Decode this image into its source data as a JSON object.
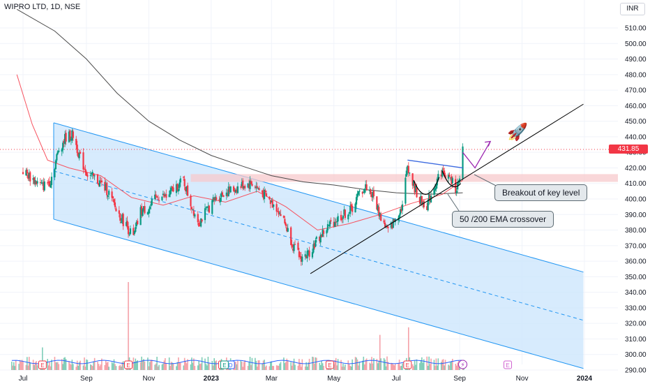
{
  "header": {
    "title": "WIPRO LTD, 1D, NSE",
    "currency": "INR"
  },
  "last_price": "431.85",
  "colors": {
    "up": "#089981",
    "down": "#f23645",
    "ema50": "#f7525f",
    "ema200": "#4a4a4a",
    "channel_fill": "#cde6fc",
    "channel_line": "#2196f3",
    "resistance_fill": "#f7c9cc",
    "cup_handle": "#3d6be0",
    "arrow": "#9c27b0",
    "trendline": "#000000"
  },
  "annotations": [
    {
      "id": "breakout",
      "text": "Breakout of key level"
    },
    {
      "id": "ema_cross",
      "text": "50 /200  EMA crossover"
    }
  ],
  "chart_data": {
    "type": "candlestick",
    "title": "WIPRO LTD, 1D, NSE",
    "y_unit": "INR",
    "ylim": [
      288,
      518
    ],
    "y_ticks": [
      "510.00",
      "500.00",
      "490.00",
      "480.00",
      "470.00",
      "460.00",
      "450.00",
      "440.00",
      "430.00",
      "420.00",
      "410.00",
      "400.00",
      "390.00",
      "380.00",
      "370.00",
      "360.00",
      "350.00",
      "340.00",
      "330.00",
      "320.00",
      "310.00",
      "300.00",
      "290.00"
    ],
    "x_ticks": [
      "Jul",
      "Sep",
      "Nov",
      "2023",
      "Mar",
      "May",
      "Jul",
      "Sep",
      "Nov",
      "2024"
    ],
    "grid": true,
    "close_price_path": [
      [
        "2022-07-01",
        418
      ],
      [
        "2022-07-10",
        413
      ],
      [
        "2022-07-20",
        408
      ],
      [
        "2022-07-28",
        412
      ],
      [
        "2022-08-05",
        432
      ],
      [
        "2022-08-12",
        440
      ],
      [
        "2022-08-19",
        441
      ],
      [
        "2022-08-26",
        426
      ],
      [
        "2022-09-02",
        416
      ],
      [
        "2022-09-12",
        412
      ],
      [
        "2022-09-22",
        405
      ],
      [
        "2022-09-30",
        393
      ],
      [
        "2022-10-10",
        383
      ],
      [
        "2022-10-17",
        375
      ],
      [
        "2022-10-24",
        392
      ],
      [
        "2022-11-02",
        395
      ],
      [
        "2022-11-10",
        402
      ],
      [
        "2022-11-18",
        401
      ],
      [
        "2022-11-28",
        408
      ],
      [
        "2022-12-05",
        412
      ],
      [
        "2022-12-12",
        397
      ],
      [
        "2022-12-20",
        385
      ],
      [
        "2022-12-28",
        393
      ],
      [
        "2023-01-05",
        400
      ],
      [
        "2023-01-13",
        404
      ],
      [
        "2023-01-23",
        406
      ],
      [
        "2023-02-01",
        409
      ],
      [
        "2023-02-10",
        410
      ],
      [
        "2023-02-20",
        404
      ],
      [
        "2023-02-28",
        398
      ],
      [
        "2023-03-07",
        394
      ],
      [
        "2023-03-15",
        383
      ],
      [
        "2023-03-22",
        370
      ],
      [
        "2023-03-29",
        362
      ],
      [
        "2023-04-05",
        364
      ],
      [
        "2023-04-12",
        371
      ],
      [
        "2023-04-20",
        378
      ],
      [
        "2023-04-28",
        384
      ],
      [
        "2023-05-08",
        389
      ],
      [
        "2023-05-18",
        393
      ],
      [
        "2023-05-26",
        404
      ],
      [
        "2023-06-02",
        408
      ],
      [
        "2023-06-09",
        401
      ],
      [
        "2023-06-16",
        388
      ],
      [
        "2023-06-23",
        379
      ],
      [
        "2023-06-30",
        387
      ],
      [
        "2023-07-07",
        396
      ],
      [
        "2023-07-12",
        422
      ],
      [
        "2023-07-17",
        410
      ],
      [
        "2023-07-24",
        399
      ],
      [
        "2023-07-31",
        396
      ],
      [
        "2023-08-07",
        408
      ],
      [
        "2023-08-14",
        418
      ],
      [
        "2023-08-21",
        414
      ],
      [
        "2023-08-28",
        407
      ],
      [
        "2023-09-01",
        410
      ],
      [
        "2023-09-04",
        431.85
      ]
    ],
    "ema50": [
      [
        "2022-06-25",
        480
      ],
      [
        "2022-07-10",
        448
      ],
      [
        "2022-07-25",
        425
      ],
      [
        "2022-08-15",
        420
      ],
      [
        "2022-09-15",
        415
      ],
      [
        "2022-10-15",
        401
      ],
      [
        "2022-11-15",
        396
      ],
      [
        "2022-12-15",
        402
      ],
      [
        "2023-01-15",
        398
      ],
      [
        "2023-02-15",
        405
      ],
      [
        "2023-03-15",
        395
      ],
      [
        "2023-04-15",
        380
      ],
      [
        "2023-05-15",
        384
      ],
      [
        "2023-06-15",
        390
      ],
      [
        "2023-07-15",
        397
      ],
      [
        "2023-08-15",
        403
      ],
      [
        "2023-09-04",
        412
      ]
    ],
    "ema200": [
      [
        "2022-06-25",
        522
      ],
      [
        "2022-08-01",
        508
      ],
      [
        "2022-09-01",
        490
      ],
      [
        "2022-10-01",
        468
      ],
      [
        "2022-11-01",
        450
      ],
      [
        "2022-12-01",
        438
      ],
      [
        "2023-01-01",
        428
      ],
      [
        "2023-02-01",
        421
      ],
      [
        "2023-03-01",
        415
      ],
      [
        "2023-04-01",
        411
      ],
      [
        "2023-05-01",
        409
      ],
      [
        "2023-06-01",
        406
      ],
      [
        "2023-07-01",
        404
      ],
      [
        "2023-08-01",
        403
      ],
      [
        "2023-09-04",
        404
      ]
    ],
    "channel": {
      "upper": [
        [
          "2022-07-31",
          449
        ],
        [
          "2023-12-31",
          353
        ]
      ],
      "lower": [
        [
          "2022-07-31",
          387
        ],
        [
          "2023-12-31",
          291
        ]
      ],
      "mid": [
        [
          "2022-07-31",
          418
        ],
        [
          "2023-12-31",
          322
        ]
      ]
    },
    "resistance_zone": {
      "from": "2022-12-12",
      "y_low": 411,
      "y_high": 416
    },
    "support_trendline": [
      [
        "2023-04-08",
        352
      ],
      [
        "2023-12-31",
        461
      ]
    ],
    "cup_handle_line": [
      [
        "2023-07-12",
        425
      ],
      [
        "2023-09-04",
        420
      ]
    ],
    "projection_arrow": [
      [
        "2023-09-04",
        430
      ],
      [
        "2023-09-16",
        420
      ],
      [
        "2023-10-01",
        437
      ]
    ],
    "earnings_markers": [
      "2022-07-20",
      "2022-10-12",
      "2023-01-12",
      "2023-04-27",
      "2023-07-12"
    ],
    "dividend_markers": [
      "2023-01-20"
    ],
    "future_event_markers": [
      "2023-10-18"
    ],
    "volume": {
      "spikes": [
        [
          "2022-10-12",
          3.5
        ],
        [
          "2022-07-20",
          0.9
        ],
        [
          "2023-07-13",
          1.7
        ],
        [
          "2023-06-15",
          1.4
        ]
      ],
      "baseline_avg": 0.32
    }
  }
}
